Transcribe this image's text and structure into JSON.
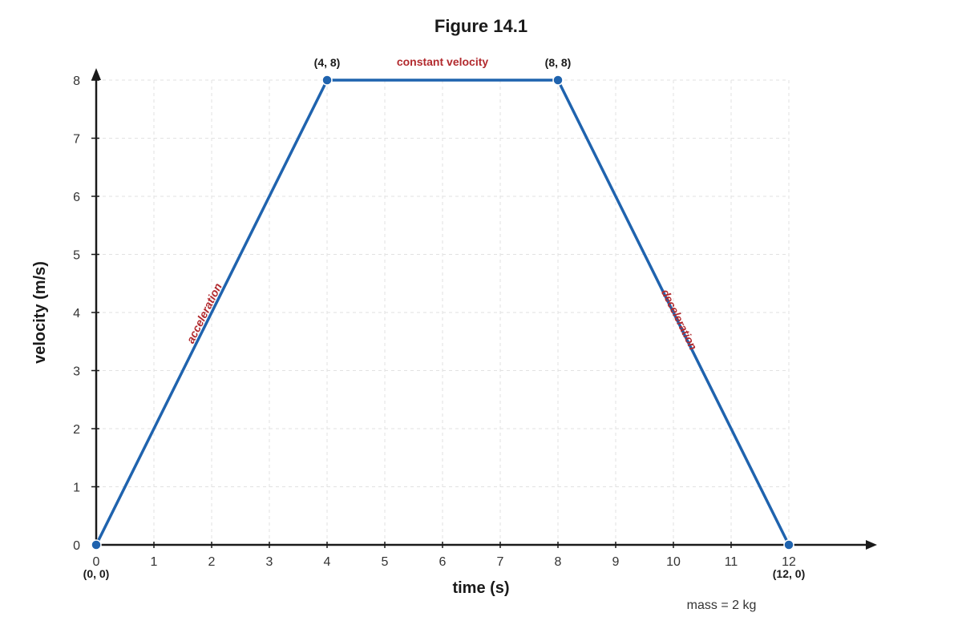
{
  "chart_data": {
    "type": "line",
    "title": "Figure 14.1",
    "xlabel": "time (s)",
    "ylabel": "velocity (m/s)",
    "xlim": [
      0,
      12
    ],
    "ylim": [
      0,
      8
    ],
    "xticks": [
      "0",
      "1",
      "2",
      "3",
      "4",
      "5",
      "6",
      "7",
      "8",
      "9",
      "10",
      "11",
      "12"
    ],
    "yticks": [
      "0",
      "1",
      "2",
      "3",
      "4",
      "5",
      "6",
      "7",
      "8"
    ],
    "grid": true,
    "line_color": "#1f63ae",
    "annotation_color": "#b22a2e",
    "points": [
      {
        "x": 0,
        "y": 0,
        "label": "(0, 0)",
        "label_side": "below"
      },
      {
        "x": 4,
        "y": 8,
        "label": "(4, 8)",
        "label_side": "above"
      },
      {
        "x": 8,
        "y": 8,
        "label": "(8, 8)",
        "label_side": "above"
      },
      {
        "x": 12,
        "y": 0,
        "label": "(12, 0)",
        "label_side": "below"
      }
    ],
    "segments": [
      {
        "from": 0,
        "to": 1,
        "label": "acceleration"
      },
      {
        "from": 1,
        "to": 2,
        "label": "constant velocity"
      },
      {
        "from": 2,
        "to": 3,
        "label": "deceleration"
      }
    ],
    "note": "mass = 2 kg"
  }
}
